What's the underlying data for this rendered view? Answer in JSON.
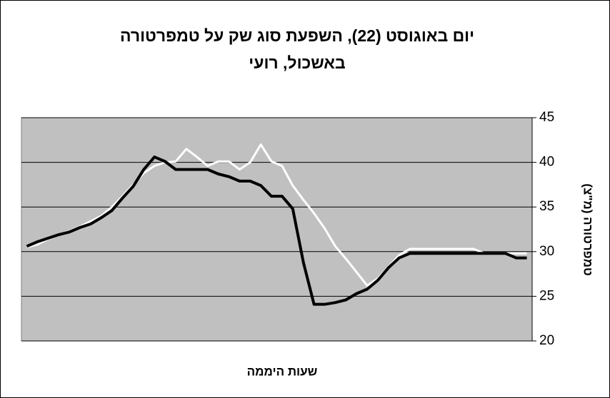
{
  "chart_data": {
    "type": "line",
    "title": [
      "יום באוגוסט (22), השפעת סוג שק על טמפרטורה",
      "באשכול, רועי"
    ],
    "x_label": "שעות היממה",
    "y_label": "טמפרטורה (מ\"צ)",
    "categories": [
      null,
      null,
      null,
      null,
      null,
      null,
      null,
      null,
      null,
      null,
      null,
      null,
      null,
      null,
      null,
      null,
      null,
      null,
      null,
      null,
      null,
      null,
      null,
      null,
      null,
      null,
      null,
      null,
      null,
      null,
      null,
      null,
      null,
      null,
      null,
      null,
      null,
      null,
      null,
      null,
      null,
      null,
      null,
      null,
      null,
      null,
      null,
      null
    ],
    "series": [
      {
        "color": "#ffffff",
        "values": [
          30.5,
          30.8,
          31.4,
          31.9,
          32.3,
          32.8,
          33.4,
          34,
          35,
          36.2,
          37.5,
          38.8,
          39.6,
          40,
          40.1,
          41.5,
          40.6,
          39.6,
          40.1,
          40.1,
          39.2,
          40,
          42,
          40.1,
          39.6,
          37.4,
          35.8,
          34.3,
          32.6,
          30.6,
          29.2,
          27.7,
          26.2,
          27,
          28.3,
          29.6,
          30.3,
          30.3,
          30.3,
          30.3,
          30.3,
          30.3,
          30.3,
          29.8,
          29.8,
          29.8,
          29.8,
          29.8
        ]
      },
      {
        "color": "#000000",
        "values": [
          30.6,
          31.1,
          31.5,
          31.9,
          32.2,
          32.7,
          33.1,
          33.8,
          34.6,
          36,
          37.3,
          39.2,
          40.6,
          40.1,
          39.2,
          39.2,
          39.2,
          39.2,
          38.7,
          38.4,
          37.9,
          37.9,
          37.4,
          36.2,
          36.2,
          34.8,
          28.8,
          24.1,
          24.1,
          24.3,
          24.6,
          25.3,
          25.8,
          26.8,
          28.2,
          29.3,
          29.8,
          29.8,
          29.8,
          29.8,
          29.8,
          29.8,
          29.8,
          29.8,
          29.8,
          29.8,
          29.3,
          29.3
        ]
      }
    ],
    "ylim": [
      20,
      45
    ],
    "yticks": [
      20,
      25,
      30,
      35,
      40,
      45
    ],
    "grid": true,
    "y_axis_side": "right",
    "plot_background": "#c0c0c0"
  }
}
